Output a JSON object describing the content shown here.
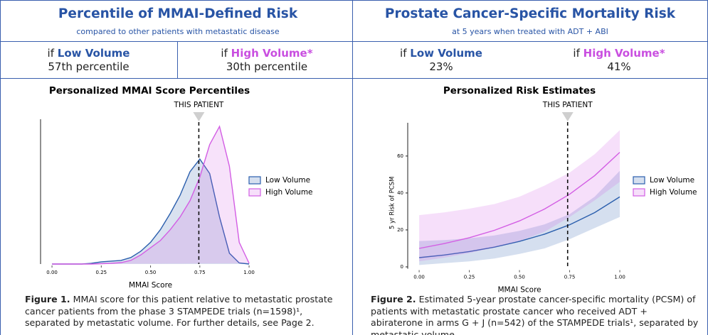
{
  "panels": [
    {
      "title": "Percentile of MMAI-Defined Risk",
      "subtitle": "compared to other patients with metastatic disease",
      "cells": [
        {
          "prefix": "if",
          "group": "Low Volume",
          "result": "57th percentile"
        },
        {
          "prefix": "if",
          "group": "High Volume*",
          "result": "30th percentile"
        }
      ],
      "caption": {
        "label": "Figure 1.",
        "text": "MMAI score for this patient relative to metastatic prostate cancer patients from the phase 3 STAMPEDE trials (n=1598)¹, separated by metastatic volume. For further details, see Page 2."
      }
    },
    {
      "title": "Prostate Cancer-Specific Mortality Risk",
      "subtitle": "at 5 years when treated with ADT + ABI",
      "cells": [
        {
          "prefix": "if",
          "group": "Low Volume",
          "result": "23%"
        },
        {
          "prefix": "if",
          "group": "High Volume*",
          "result": "41%"
        }
      ],
      "caption": {
        "label": "Figure 2.",
        "text": "Estimated 5-year prostate cancer-specific mortality (PCSM) of patients with metastatic prostate cancer who received ADT + abiraterone in arms G + J (n=542) of the STAMPEDE trials¹, separated by metastatic volume."
      }
    }
  ],
  "chart_data": [
    {
      "type": "area",
      "title": "Personalized MMAI Score Percentiles",
      "xlabel": "MMAI Score",
      "x": [
        0,
        0.05,
        0.1,
        0.15,
        0.2,
        0.25,
        0.3,
        0.35,
        0.4,
        0.45,
        0.5,
        0.55,
        0.6,
        0.65,
        0.7,
        0.75,
        0.8,
        0.85,
        0.9,
        0.95,
        1
      ],
      "series": [
        {
          "name": "Low Volume",
          "color": "#2b5fad",
          "values": [
            0,
            0,
            0,
            0,
            0.02,
            0.06,
            0.08,
            0.1,
            0.18,
            0.35,
            0.6,
            0.95,
            1.4,
            1.9,
            2.55,
            2.9,
            2.5,
            1.3,
            0.3,
            0.03,
            0
          ]
        },
        {
          "name": "High Volume",
          "color": "#d35ee4",
          "values": [
            0,
            0,
            0,
            0,
            0,
            0.01,
            0.02,
            0.04,
            0.1,
            0.25,
            0.45,
            0.65,
            0.95,
            1.3,
            1.75,
            2.4,
            3.3,
            3.8,
            2.7,
            0.6,
            0.02
          ]
        }
      ],
      "xlim": [
        -0.058,
        1.02
      ],
      "ylim": [
        0,
        4
      ],
      "xticks": [
        {
          "value": 0,
          "label": "0.00"
        },
        {
          "value": 0.25,
          "label": "0.25"
        },
        {
          "value": 0.5,
          "label": "0.50"
        },
        {
          "value": 0.75,
          "label": "0.75"
        },
        {
          "value": 1,
          "label": "1.00"
        }
      ],
      "marker": {
        "x": 0.745,
        "label": "THIS PATIENT"
      },
      "legend": "right"
    },
    {
      "type": "line_band",
      "title": "Personalized Risk Estimates",
      "xlabel": "MMAI Score",
      "ylabel": "5 yr Risk of PCSM",
      "x": [
        0,
        0.125,
        0.25,
        0.375,
        0.5,
        0.625,
        0.75,
        0.875,
        1
      ],
      "series": [
        {
          "name": "Low Volume",
          "color": "#2b5fad",
          "values": [
            5,
            6.4,
            8.3,
            10.7,
            13.8,
            17.7,
            22.8,
            29.4,
            37.9
          ],
          "lower": [
            1,
            2,
            3,
            4.5,
            7,
            10,
            15,
            21,
            27
          ],
          "upper": [
            14,
            14.5,
            15.5,
            17,
            19.5,
            23,
            28.5,
            38,
            52
          ]
        },
        {
          "name": "High Volume",
          "color": "#d35ee4",
          "values": [
            10,
            12.6,
            15.8,
            19.8,
            24.9,
            31.3,
            39.3,
            49.4,
            62
          ],
          "lower": [
            3,
            5,
            7.5,
            10.5,
            14,
            19,
            27,
            36,
            46
          ],
          "upper": [
            28,
            29.5,
            31.5,
            34,
            38,
            44,
            51,
            61,
            74
          ]
        }
      ],
      "xlim": [
        -0.057,
        1.03
      ],
      "ylim": [
        -1,
        78
      ],
      "xticks": [
        {
          "value": 0,
          "label": "0.00"
        },
        {
          "value": 0.25,
          "label": "0.25"
        },
        {
          "value": 0.5,
          "label": "0.50"
        },
        {
          "value": 0.75,
          "label": "0.75"
        },
        {
          "value": 1,
          "label": "1.00"
        }
      ],
      "yticks": [
        0,
        20,
        40,
        60
      ],
      "marker": {
        "x": 0.74,
        "label": "THIS PATIENT"
      },
      "legend": "right"
    }
  ]
}
